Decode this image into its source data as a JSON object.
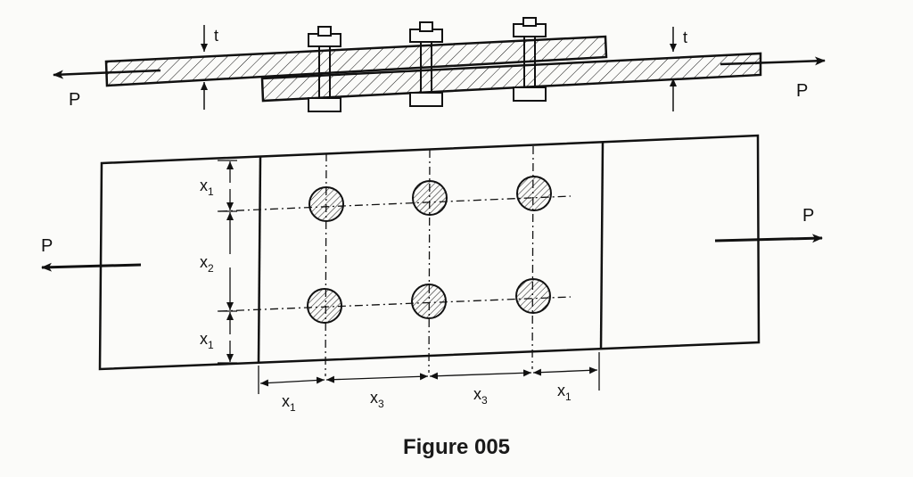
{
  "figure": {
    "caption": "Figure 005",
    "line_color": "#111111",
    "background": "#fbfbf9"
  },
  "side_view": {
    "load_left": "P",
    "load_right": "P",
    "thickness_left": "t",
    "thickness_right": "t"
  },
  "plan_view": {
    "load_left": "P",
    "load_right": "P",
    "dim_x1_top": "x",
    "dim_x1_top_sub": "1",
    "dim_x2": "x",
    "dim_x2_sub": "2",
    "dim_x1_bottom": "x",
    "dim_x1_bottom_sub": "1",
    "dim_x1_left": "x",
    "dim_x1_left_sub": "1",
    "dim_x3_a": "x",
    "dim_x3_a_sub": "3",
    "dim_x3_b": "x",
    "dim_x3_b_sub": "3",
    "dim_x1_right": "x",
    "dim_x1_right_sub": "1"
  }
}
